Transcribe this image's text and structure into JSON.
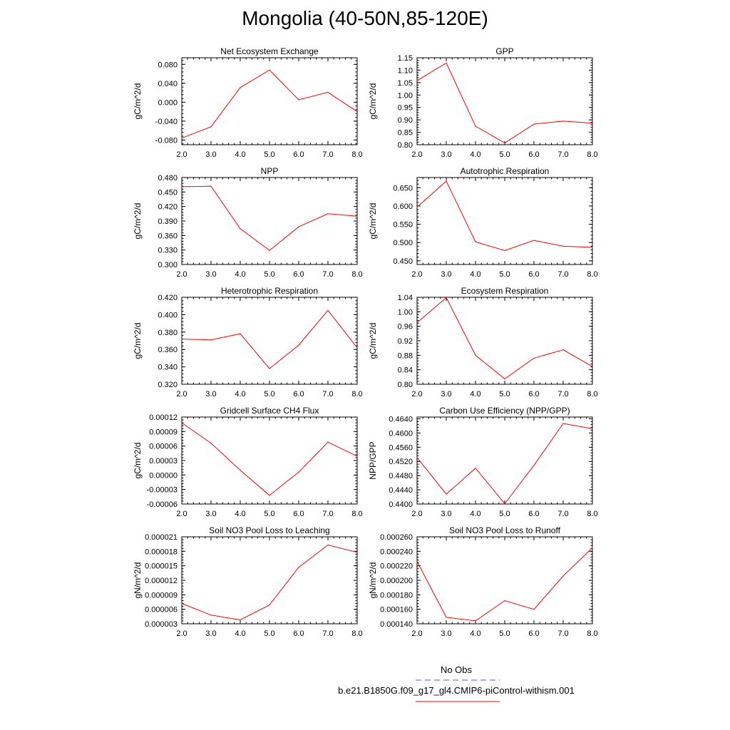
{
  "title": "Mongolia (40-50N,85-120E)",
  "colors": {
    "series": "#ff0000",
    "obs": "#5a5ad0",
    "axis": "#000000"
  },
  "legend": {
    "obs_label": "No Obs",
    "case_label": "b.e21.B1850G.f09_g17_gl4.CMIP6-piControl-withism.001"
  },
  "chart_data": [
    {
      "type": "line",
      "title": "Net Ecosystem Exchange",
      "ylabel": "gC/m^2/d",
      "x": [
        2,
        3,
        4,
        5,
        6,
        7,
        8
      ],
      "xlim": [
        2,
        8
      ],
      "xticks": [
        "2.0",
        "3.0",
        "4.0",
        "5.0",
        "6.0",
        "7.0",
        "8.0"
      ],
      "ylim": [
        -0.09,
        0.094
      ],
      "yticks": [
        "-0.080",
        "-0.040",
        "0.000",
        "0.040",
        "0.080"
      ],
      "ytick_values": [
        -0.08,
        -0.04,
        0,
        0.04,
        0.08
      ],
      "values": [
        -0.076,
        -0.052,
        0.031,
        0.068,
        0.005,
        0.021,
        -0.02
      ]
    },
    {
      "type": "line",
      "title": "GPP",
      "ylabel": "gC/m^2/d",
      "x": [
        2,
        3,
        4,
        5,
        6,
        7,
        8
      ],
      "xlim": [
        2,
        8
      ],
      "xticks": [
        "2.0",
        "3.0",
        "4.0",
        "5.0",
        "6.0",
        "7.0",
        "8.0"
      ],
      "ylim": [
        0.8,
        1.15
      ],
      "yticks": [
        "0.80",
        "0.85",
        "0.90",
        "0.95",
        "1.00",
        "1.05",
        "1.10",
        "1.15"
      ],
      "ytick_values": [
        0.8,
        0.85,
        0.9,
        0.95,
        1.0,
        1.05,
        1.1,
        1.15
      ],
      "values": [
        1.058,
        1.129,
        0.875,
        0.807,
        0.883,
        0.895,
        0.887
      ]
    },
    {
      "type": "line",
      "title": "NPP",
      "ylabel": "gC/m^2/d",
      "x": [
        2,
        3,
        4,
        5,
        6,
        7,
        8
      ],
      "xlim": [
        2,
        8
      ],
      "xticks": [
        "2.0",
        "3.0",
        "4.0",
        "5.0",
        "6.0",
        "7.0",
        "8.0"
      ],
      "ylim": [
        0.3,
        0.48
      ],
      "yticks": [
        "0.300",
        "0.330",
        "0.360",
        "0.390",
        "0.420",
        "0.450",
        "0.480"
      ],
      "ytick_values": [
        0.3,
        0.33,
        0.36,
        0.39,
        0.42,
        0.45,
        0.48
      ],
      "values": [
        0.461,
        0.462,
        0.374,
        0.329,
        0.378,
        0.405,
        0.4
      ]
    },
    {
      "type": "line",
      "title": "Autotrophic Respiration",
      "ylabel": "gC/m^2/d",
      "x": [
        2,
        3,
        4,
        5,
        6,
        7,
        8
      ],
      "xlim": [
        2,
        8
      ],
      "xticks": [
        "2.0",
        "3.0",
        "4.0",
        "5.0",
        "6.0",
        "7.0",
        "8.0"
      ],
      "ylim": [
        0.44,
        0.678
      ],
      "yticks": [
        "0.450",
        "0.500",
        "0.550",
        "0.600",
        "0.650"
      ],
      "ytick_values": [
        0.45,
        0.5,
        0.55,
        0.6,
        0.65
      ],
      "values": [
        0.597,
        0.668,
        0.502,
        0.478,
        0.506,
        0.49,
        0.487
      ]
    },
    {
      "type": "line",
      "title": "Heterotrophic Respiration",
      "ylabel": "gC/m^2/d",
      "x": [
        2,
        3,
        4,
        5,
        6,
        7,
        8
      ],
      "xlim": [
        2,
        8
      ],
      "xticks": [
        "2.0",
        "3.0",
        "4.0",
        "5.0",
        "6.0",
        "7.0",
        "8.0"
      ],
      "ylim": [
        0.32,
        0.42
      ],
      "yticks": [
        "0.320",
        "0.340",
        "0.360",
        "0.380",
        "0.400",
        "0.420"
      ],
      "ytick_values": [
        0.32,
        0.34,
        0.36,
        0.38,
        0.4,
        0.42
      ],
      "values": [
        0.372,
        0.371,
        0.378,
        0.338,
        0.365,
        0.405,
        0.362
      ]
    },
    {
      "type": "line",
      "title": "Ecosystem Respiration",
      "ylabel": "gC/m^2/d",
      "x": [
        2,
        3,
        4,
        5,
        6,
        7,
        8
      ],
      "xlim": [
        2,
        8
      ],
      "xticks": [
        "2.0",
        "3.0",
        "4.0",
        "5.0",
        "6.0",
        "7.0",
        "8.0"
      ],
      "ylim": [
        0.8,
        1.04
      ],
      "yticks": [
        "0.80",
        "0.84",
        "0.88",
        "0.92",
        "0.96",
        "1.00",
        "1.04"
      ],
      "ytick_values": [
        0.8,
        0.84,
        0.88,
        0.92,
        0.96,
        1.0,
        1.04
      ],
      "values": [
        0.97,
        1.039,
        0.88,
        0.815,
        0.872,
        0.895,
        0.849
      ]
    },
    {
      "type": "line",
      "title": "Gridcell Surface CH4 Flux",
      "ylabel": "gC/m^2/d",
      "x": [
        2,
        3,
        4,
        5,
        6,
        7,
        8
      ],
      "xlim": [
        2,
        8
      ],
      "xticks": [
        "2.0",
        "3.0",
        "4.0",
        "5.0",
        "6.0",
        "7.0",
        "8.0"
      ],
      "ylim": [
        -6e-05,
        0.00012
      ],
      "yticks": [
        "-0.00006",
        "-0.00003",
        "0.00000",
        "0.00003",
        "0.00006",
        "0.00009",
        "0.00012"
      ],
      "ytick_values": [
        -6e-05,
        -3e-05,
        0,
        3e-05,
        6e-05,
        9e-05,
        0.00012
      ],
      "values": [
        0.000108,
        6.6e-05,
        1e-05,
        -4.2e-05,
        6e-06,
        6.8e-05,
        3.9e-05
      ]
    },
    {
      "type": "line",
      "title": "Carbon Use Efficiency (NPP/GPP)",
      "ylabel": "NPP/GPP",
      "x": [
        2,
        3,
        4,
        5,
        6,
        7,
        8
      ],
      "xlim": [
        2,
        8
      ],
      "xticks": [
        "2.0",
        "3.0",
        "4.0",
        "5.0",
        "6.0",
        "7.0",
        "8.0"
      ],
      "ylim": [
        0.44,
        0.4645
      ],
      "yticks": [
        "0.4400",
        "0.4440",
        "0.4480",
        "0.4520",
        "0.4560",
        "0.4600",
        "0.4640"
      ],
      "ytick_values": [
        0.44,
        0.444,
        0.448,
        0.452,
        0.456,
        0.46,
        0.464
      ],
      "values": [
        0.4531,
        0.4428,
        0.4501,
        0.4401,
        0.4509,
        0.4627,
        0.4612
      ]
    },
    {
      "type": "line",
      "title": "Soil NO3 Pool Loss to Leaching",
      "ylabel": "gN/m^2/d",
      "x": [
        2,
        3,
        4,
        5,
        6,
        7,
        8
      ],
      "xlim": [
        2,
        8
      ],
      "xticks": [
        "2.0",
        "3.0",
        "4.0",
        "5.0",
        "6.0",
        "7.0",
        "8.0"
      ],
      "ylim": [
        3e-06,
        2.1e-05
      ],
      "yticks": [
        "0.000003",
        "0.000006",
        "0.000009",
        "0.000012",
        "0.000015",
        "0.000018",
        "0.000021"
      ],
      "ytick_values": [
        3e-06,
        6e-06,
        9e-06,
        1.2e-05,
        1.5e-05,
        1.8e-05,
        2.1e-05
      ],
      "values": [
        7.2e-06,
        4.8e-06,
        3.8e-06,
        6.9e-06,
        1.47e-05,
        1.93e-05,
        1.78e-05
      ]
    },
    {
      "type": "line",
      "title": "Soil NO3 Pool Loss to Runoff",
      "ylabel": "gN/m^2/d",
      "x": [
        2,
        3,
        4,
        5,
        6,
        7,
        8
      ],
      "xlim": [
        2,
        8
      ],
      "xticks": [
        "2.0",
        "3.0",
        "4.0",
        "5.0",
        "6.0",
        "7.0",
        "8.0"
      ],
      "ylim": [
        0.00014,
        0.00026
      ],
      "yticks": [
        "0.000140",
        "0.000160",
        "0.000180",
        "0.000200",
        "0.000220",
        "0.000240",
        "0.000260"
      ],
      "ytick_values": [
        0.00014,
        0.00016,
        0.00018,
        0.0002,
        0.00022,
        0.00024,
        0.00026
      ],
      "values": [
        0.000226,
        0.000149,
        0.000144,
        0.000172,
        0.00016,
        0.000206,
        0.000245
      ]
    }
  ]
}
